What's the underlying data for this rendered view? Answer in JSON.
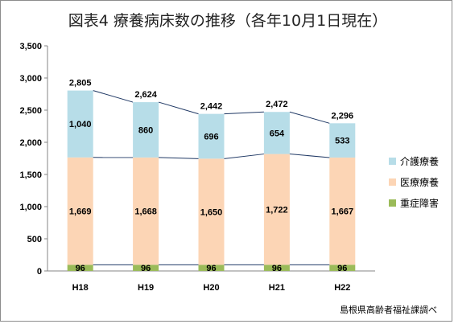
{
  "chart_data": {
    "type": "bar",
    "stacked": true,
    "title": "図表4 療養病床数の推移（各年10月1日現在）",
    "categories": [
      "H18",
      "H19",
      "H20",
      "H21",
      "H22"
    ],
    "series": [
      {
        "name": "重症障害",
        "values": [
          96,
          96,
          96,
          96,
          96
        ],
        "color": "#9bbb59"
      },
      {
        "name": "医療療養",
        "values": [
          1669,
          1668,
          1650,
          1722,
          1667
        ],
        "color": "#fcd5b5"
      },
      {
        "name": "介護療養",
        "values": [
          1040,
          860,
          696,
          654,
          533
        ],
        "color": "#b7dde8"
      }
    ],
    "totals": [
      2805,
      2624,
      2442,
      2472,
      2296
    ],
    "ylim": [
      0,
      3500
    ],
    "yticks": [
      0,
      500,
      1000,
      1500,
      2000,
      2500,
      3000,
      3500
    ],
    "ytick_labels": [
      "0",
      "500",
      "1,000",
      "1,500",
      "2,000",
      "2,500",
      "3,000",
      "3,500"
    ],
    "grid": false,
    "legend_position": "right",
    "series_lines": true,
    "line_color": "#1f3864"
  },
  "source_note": "島根県高齢者福祉課調べ"
}
